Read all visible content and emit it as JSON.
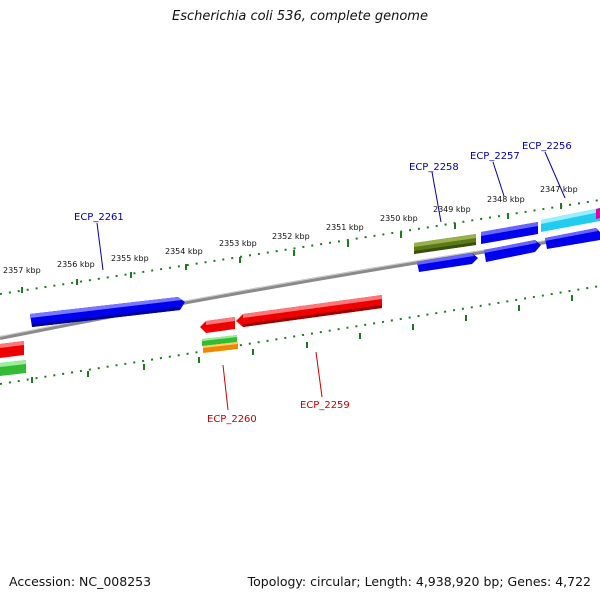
{
  "title": "Escherichia coli 536, complete genome",
  "footer": {
    "accession": "Accession: NC_008253",
    "summary": "Topology: circular; Length: 4,938,920 bp; Genes: 4,722"
  },
  "colors": {
    "backbone": "#888888",
    "ticks": "#1f7a1f",
    "forward_label": "#0000aa",
    "reverse_label": "#cc0000",
    "blue": "#0000ee",
    "red": "#ee0000",
    "green": "#33bb33",
    "olive": "#5a7a1a",
    "cyan": "#22ccee",
    "orange": "#ee8800"
  },
  "kbp_labels": [
    {
      "text": "2357 kbp",
      "pos": 2357
    },
    {
      "text": "2356 kbp",
      "pos": 2356
    },
    {
      "text": "2355 kbp",
      "pos": 2355
    },
    {
      "text": "2354 kbp",
      "pos": 2354
    },
    {
      "text": "2353 kbp",
      "pos": 2353
    },
    {
      "text": "2352 kbp",
      "pos": 2352
    },
    {
      "text": "2351 kbp",
      "pos": 2351
    },
    {
      "text": "2350 kbp",
      "pos": 2350
    },
    {
      "text": "2349 kbp",
      "pos": 2349
    },
    {
      "text": "2348 kbp",
      "pos": 2348
    },
    {
      "text": "2347 kbp",
      "pos": 2347
    }
  ],
  "gene_labels": [
    {
      "name": "ECP_2261",
      "strand": "forward"
    },
    {
      "name": "ECP_2258",
      "strand": "forward"
    },
    {
      "name": "ECP_2257",
      "strand": "forward"
    },
    {
      "name": "ECP_2256",
      "strand": "forward"
    },
    {
      "name": "ECP_2260",
      "strand": "reverse"
    },
    {
      "name": "ECP_2259",
      "strand": "reverse"
    }
  ]
}
